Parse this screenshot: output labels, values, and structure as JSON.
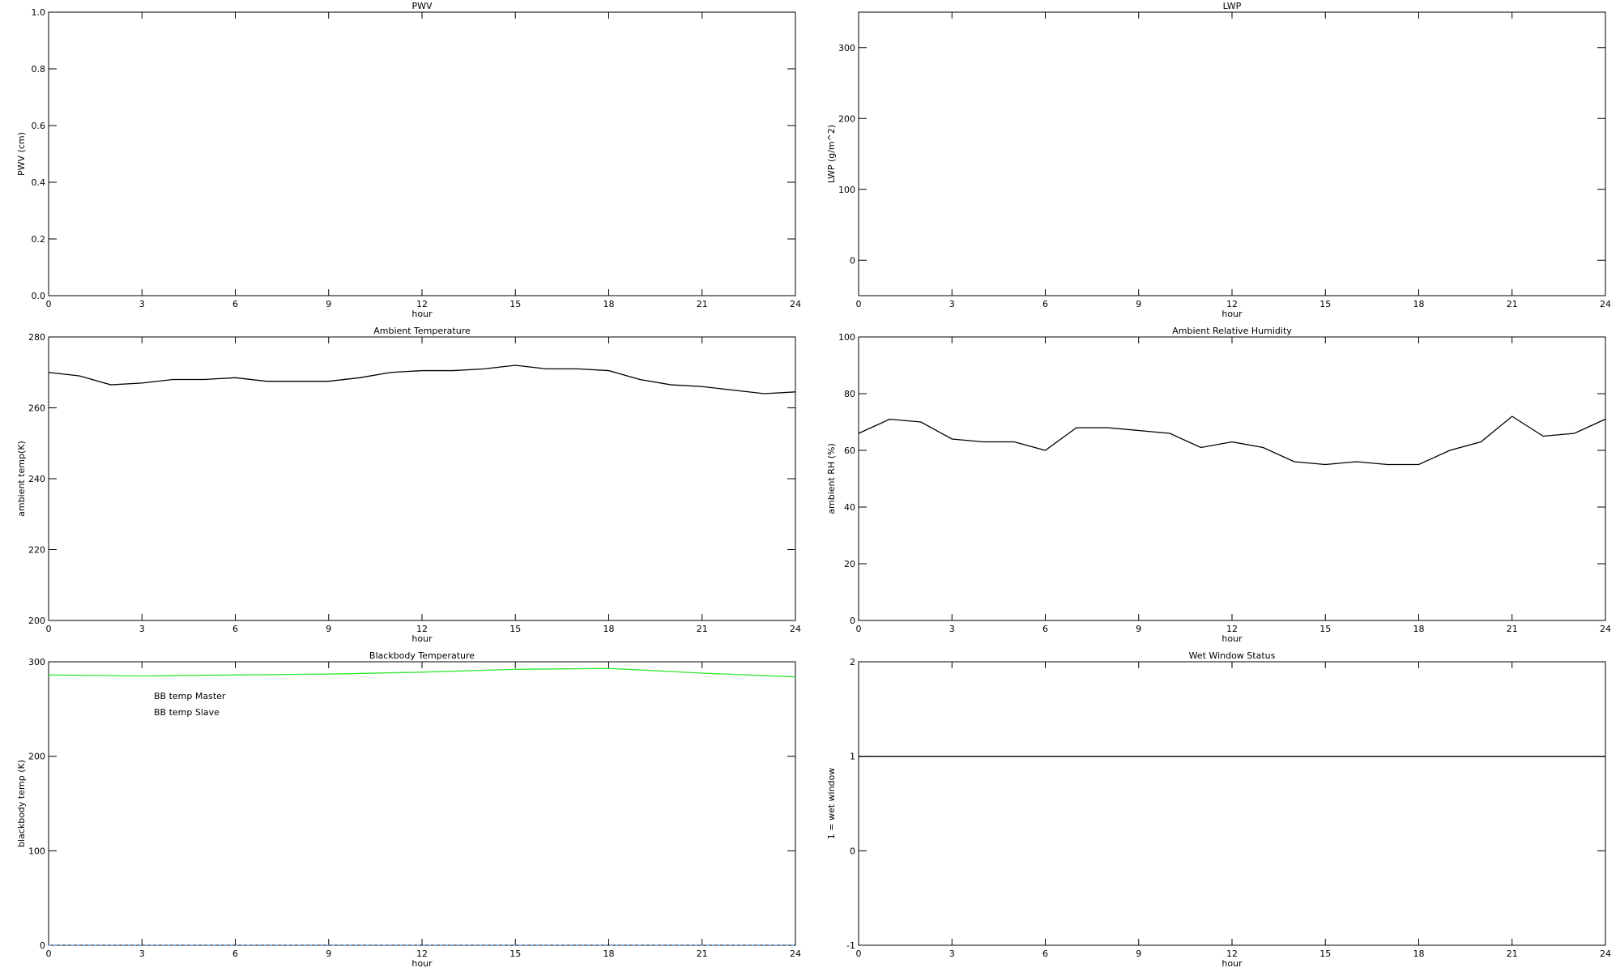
{
  "chart_data": [
    {
      "type": "line",
      "title": "PWV",
      "xlabel": "hour",
      "ylabel": "PWV (cm)",
      "xlim": [
        0,
        24
      ],
      "xticks": [
        0,
        3,
        6,
        9,
        12,
        15,
        18,
        21,
        24
      ],
      "ylim": [
        0,
        1
      ],
      "yticks": [
        {
          "value": 0,
          "label": "0.0"
        },
        {
          "value": 0.2,
          "label": "0.2"
        },
        {
          "value": 0.4,
          "label": "0.4"
        },
        {
          "value": 0.6,
          "label": "0.6"
        },
        {
          "value": 0.8,
          "label": "0.8"
        },
        {
          "value": 1,
          "label": "1.0"
        }
      ],
      "series": []
    },
    {
      "type": "line",
      "title": "LWP",
      "xlabel": "hour",
      "ylabel": "LWP (g/m^2)",
      "xlim": [
        0,
        24
      ],
      "xticks": [
        0,
        3,
        6,
        9,
        12,
        15,
        18,
        21,
        24
      ],
      "ylim": [
        -50,
        350
      ],
      "yticks": [
        0,
        100,
        200,
        300
      ],
      "series": []
    },
    {
      "type": "line",
      "title": "Ambient Temperature",
      "xlabel": "hour",
      "ylabel": "ambient temp(K)",
      "xlim": [
        0,
        24
      ],
      "xticks": [
        0,
        3,
        6,
        9,
        12,
        15,
        18,
        21,
        24
      ],
      "ylim": [
        200,
        280
      ],
      "yticks": [
        200,
        220,
        240,
        260,
        280
      ],
      "x": [
        0,
        1,
        2,
        3,
        4,
        5,
        6,
        7,
        8,
        9,
        10,
        11,
        12,
        13,
        14,
        15,
        16,
        17,
        18,
        19,
        20,
        21,
        22,
        23,
        24
      ],
      "series": [
        {
          "color": "#000000",
          "values": [
            270,
            269,
            266.5,
            267,
            268,
            268,
            268.5,
            267.5,
            267.5,
            267.5,
            268.5,
            270,
            270.5,
            270.5,
            271,
            272,
            271,
            271,
            270.5,
            268,
            266.5,
            266,
            265,
            264,
            264.5
          ]
        }
      ]
    },
    {
      "type": "line",
      "title": "Ambient Relative Humidity",
      "xlabel": "hour",
      "ylabel": "ambient RH (%)",
      "xlim": [
        0,
        24
      ],
      "xticks": [
        0,
        3,
        6,
        9,
        12,
        15,
        18,
        21,
        24
      ],
      "ylim": [
        0,
        100
      ],
      "yticks": [
        0,
        20,
        40,
        60,
        80,
        100
      ],
      "x": [
        0,
        1,
        2,
        3,
        4,
        5,
        6,
        7,
        8,
        9,
        10,
        11,
        12,
        13,
        14,
        15,
        16,
        17,
        18,
        19,
        20,
        21,
        22,
        23,
        24
      ],
      "series": [
        {
          "color": "#000000",
          "values": [
            66,
            71,
            70,
            64,
            63,
            63,
            60,
            68,
            68,
            67,
            66,
            61,
            63,
            61,
            56,
            55,
            56,
            55,
            55,
            60,
            63,
            72,
            65,
            66,
            71
          ]
        }
      ]
    },
    {
      "type": "line",
      "title": "Blackbody Temperature",
      "xlabel": "hour",
      "ylabel": "blackbody temp (K)",
      "xlim": [
        0,
        24
      ],
      "xticks": [
        0,
        3,
        6,
        9,
        12,
        15,
        18,
        21,
        24
      ],
      "ylim": [
        0,
        300
      ],
      "yticks": [
        0,
        100,
        200,
        300
      ],
      "legend": "upper left",
      "x": [
        0,
        3,
        6,
        9,
        12,
        15,
        18,
        21,
        24
      ],
      "series": [
        {
          "name": "BB temp Master",
          "color": "#3a8ef0",
          "values": [
            0,
            0,
            0,
            0,
            0,
            0,
            0,
            0,
            0
          ]
        },
        {
          "name": "BB temp Slave",
          "color": "#33e833",
          "values": [
            286,
            285,
            286,
            287,
            289,
            292,
            293,
            288,
            284
          ]
        }
      ]
    },
    {
      "type": "line",
      "title": "Wet Window Status",
      "xlabel": "hour",
      "ylabel": "1 = wet window",
      "xlim": [
        0,
        24
      ],
      "xticks": [
        0,
        3,
        6,
        9,
        12,
        15,
        18,
        21,
        24
      ],
      "ylim": [
        -1,
        2
      ],
      "yticks": [
        -1,
        0,
        1,
        2
      ],
      "x": [
        0,
        24
      ],
      "series": [
        {
          "color": "#000000",
          "values": [
            1,
            1
          ]
        }
      ]
    }
  ]
}
